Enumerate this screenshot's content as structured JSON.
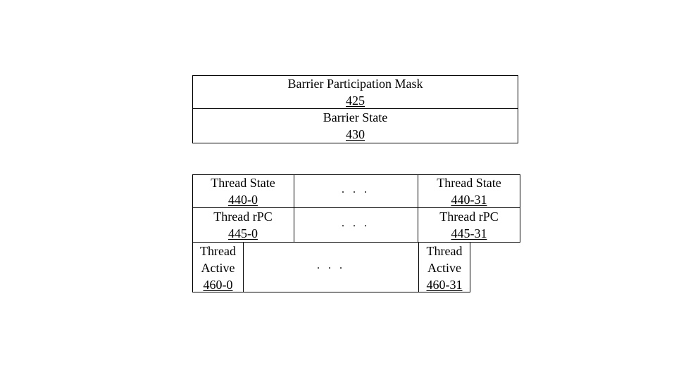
{
  "barrier_block": {
    "participation_mask": {
      "label": "Barrier Participation Mask",
      "ref": "425"
    },
    "state": {
      "label": "Barrier State",
      "ref": "430"
    }
  },
  "thread_block": {
    "state_first": {
      "label": "Thread State",
      "ref": "440-0"
    },
    "state_last": {
      "label": "Thread State",
      "ref": "440-31"
    },
    "rpc_first": {
      "label": "Thread rPC",
      "ref": "445-0"
    },
    "rpc_last": {
      "label": "Thread rPC",
      "ref": "445-31"
    },
    "active_first": {
      "label_line1": "Thread",
      "label_line2": "Active",
      "ref": "460-0"
    },
    "active_last": {
      "label_line1": "Thread",
      "label_line2": "Active",
      "ref": "460-31"
    },
    "ellipsis": ". . ."
  }
}
